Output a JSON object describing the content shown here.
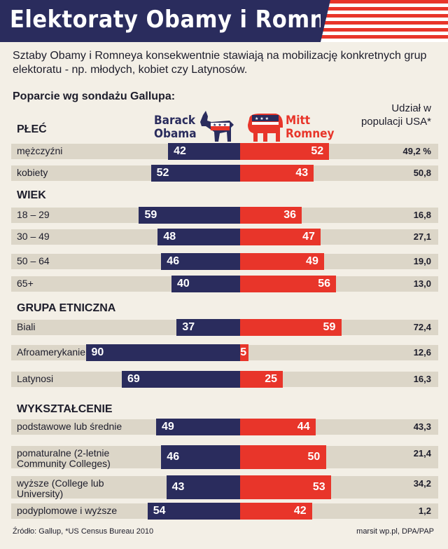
{
  "header": {
    "title": "Elektoraty Obamy i Romneya",
    "subtitle": "Sztaby Obamy i Romneya konsekwentnie stawiają na mobilizację konkretnych grup elektoratu - np. młodych, kobiet czy Latynosów.",
    "poll_label": "Poparcie wg sondażu Gallupa:"
  },
  "candidates": {
    "obama_name": "Barack Obama",
    "romney_name": "Mitt Romney"
  },
  "share_header": "Udział w populacji USA*",
  "footer": {
    "source": "Źródło: Gallup, *US Census Bureau 2010",
    "credit": "marsit wp.pl, DPA/PAP"
  },
  "colors": {
    "obama": "#2a2c5d",
    "romney": "#e8352a",
    "row_bg": "#dcd6c8",
    "page_bg": "#f3efe6"
  },
  "chart_data": {
    "type": "bar",
    "orientation": "horizontal-diverging",
    "title": "Poparcie wg sondażu Gallupa",
    "series": [
      {
        "name": "Barack Obama",
        "key": "obama"
      },
      {
        "name": "Mitt Romney",
        "key": "romney"
      }
    ],
    "value_unit": "%",
    "share_label": "Udział w populacji USA*",
    "groups": [
      {
        "title": "PŁEĆ",
        "rows": [
          {
            "label": "mężczyźni",
            "obama": 42,
            "romney": 52,
            "share": "49,2 %"
          },
          {
            "label": "kobiety",
            "obama": 52,
            "romney": 43,
            "share": "50,8"
          }
        ]
      },
      {
        "title": "WIEK",
        "rows": [
          {
            "label": "18 – 29",
            "obama": 59,
            "romney": 36,
            "share": "16,8"
          },
          {
            "label": "30 – 49",
            "obama": 48,
            "romney": 47,
            "share": "27,1"
          },
          {
            "label": "50 – 64",
            "obama": 46,
            "romney": 49,
            "share": "19,0"
          },
          {
            "label": "65+",
            "obama": 40,
            "romney": 56,
            "share": "13,0"
          }
        ]
      },
      {
        "title": "GRUPA ETNICZNA",
        "rows": [
          {
            "label": "Biali",
            "obama": 37,
            "romney": 59,
            "share": "72,4"
          },
          {
            "label": "Afroamerykanie",
            "obama": 90,
            "romney": 5,
            "share": "12,6"
          },
          {
            "label": "Latynosi",
            "obama": 69,
            "romney": 25,
            "share": "16,3"
          }
        ]
      },
      {
        "title": "WYKSZTAŁCENIE",
        "rows": [
          {
            "label": "podstawowe lub średnie",
            "obama": 49,
            "romney": 44,
            "share": "43,3"
          },
          {
            "label": "pomaturalne (2-letnie Community Colleges)",
            "obama": 46,
            "romney": 50,
            "share": "21,4"
          },
          {
            "label": "wyższe (College lub University)",
            "obama": 43,
            "romney": 53,
            "share": "34,2"
          },
          {
            "label": "podyplomowe i wyższe",
            "obama": 54,
            "romney": 42,
            "share": "1,2"
          }
        ]
      }
    ]
  }
}
